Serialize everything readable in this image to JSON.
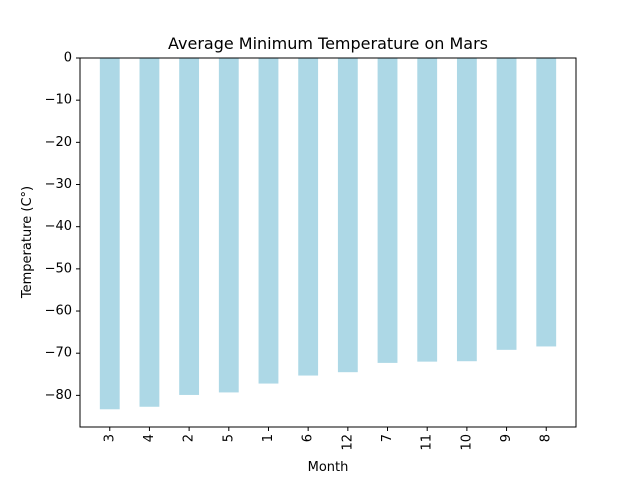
{
  "chart_data": {
    "type": "bar",
    "title": "Average Minimum Temperature on Mars",
    "xlabel": "Month",
    "ylabel": "Temperature (C°)",
    "categories": [
      "3",
      "4",
      "2",
      "5",
      "1",
      "6",
      "12",
      "7",
      "11",
      "10",
      "9",
      "8"
    ],
    "values": [
      -83.3,
      -82.7,
      -79.9,
      -79.3,
      -77.2,
      -75.3,
      -74.5,
      -72.3,
      -72.0,
      -71.9,
      -69.2,
      -68.4
    ],
    "ylim": [
      -87.5,
      0
    ],
    "yticks": [
      0,
      -10,
      -20,
      -30,
      -40,
      -50,
      -60,
      -70,
      -80
    ],
    "ytick_labels": [
      "0",
      "−10",
      "−20",
      "−30",
      "−40",
      "−50",
      "−60",
      "−70",
      "−80"
    ],
    "bar_color": "#add8e6",
    "grid": false,
    "legend": false
  }
}
